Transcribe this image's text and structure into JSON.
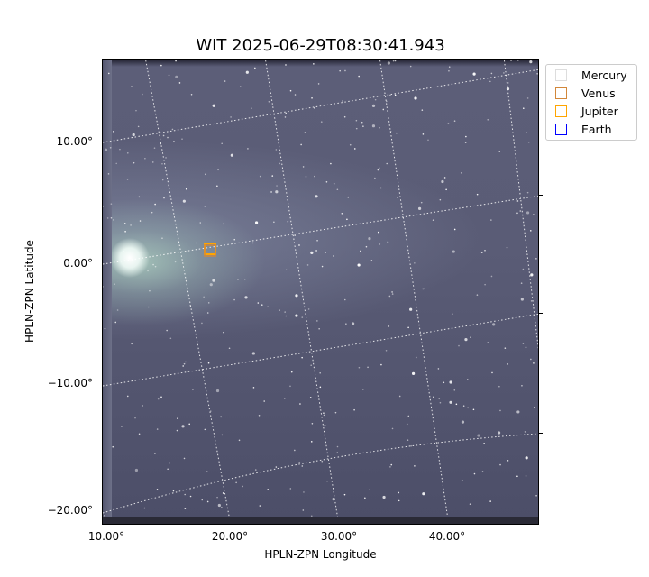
{
  "chart_data": {
    "type": "image",
    "title": "WIT 2025-06-29T08:30:41.943",
    "xlabel": "HPLN-ZPN Longitude",
    "ylabel": "HPLN-ZPN Latitude",
    "x_ticks": [
      "10.00°",
      "20.00°",
      "30.00°",
      "40.00°"
    ],
    "y_ticks": [
      "10.00°",
      "0.00°",
      "−10.00°",
      "−20.00°"
    ],
    "grid": true,
    "colormap": "bone",
    "legend_position": "outside-top-right",
    "legend": [
      {
        "name": "Mercury",
        "color": "#dddddd"
      },
      {
        "name": "Venus",
        "color": "#d2873a"
      },
      {
        "name": "Jupiter",
        "color": "#ffa500"
      },
      {
        "name": "Earth",
        "color": "#0000ff"
      }
    ]
  }
}
